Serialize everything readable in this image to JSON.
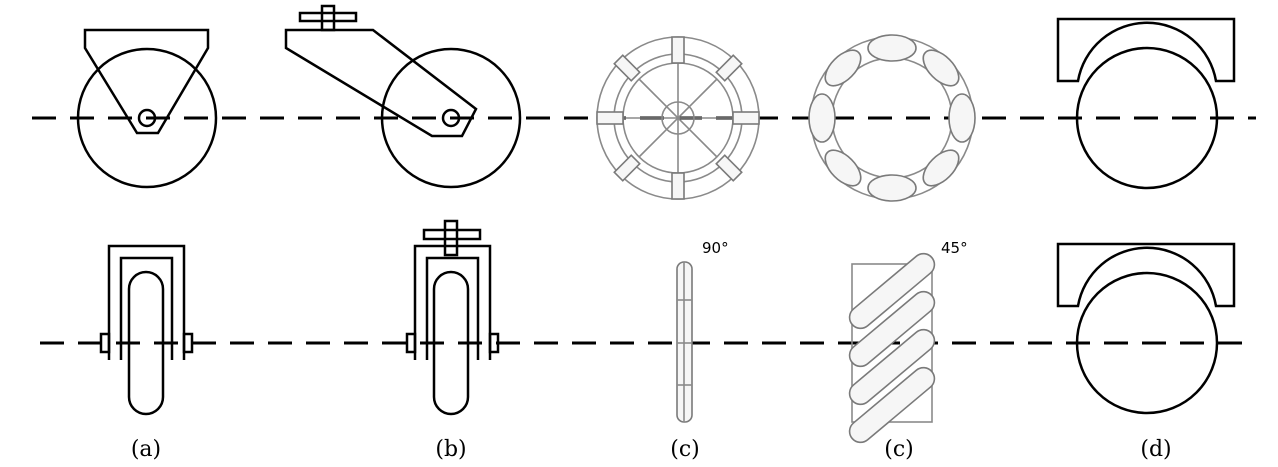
{
  "captions": {
    "a": "(a)",
    "b": "(b)",
    "c1": "(c)",
    "c2": "(c)",
    "d": "(d)"
  },
  "angles": {
    "mecanum_straight": "90°",
    "mecanum_inclined": "45°"
  }
}
